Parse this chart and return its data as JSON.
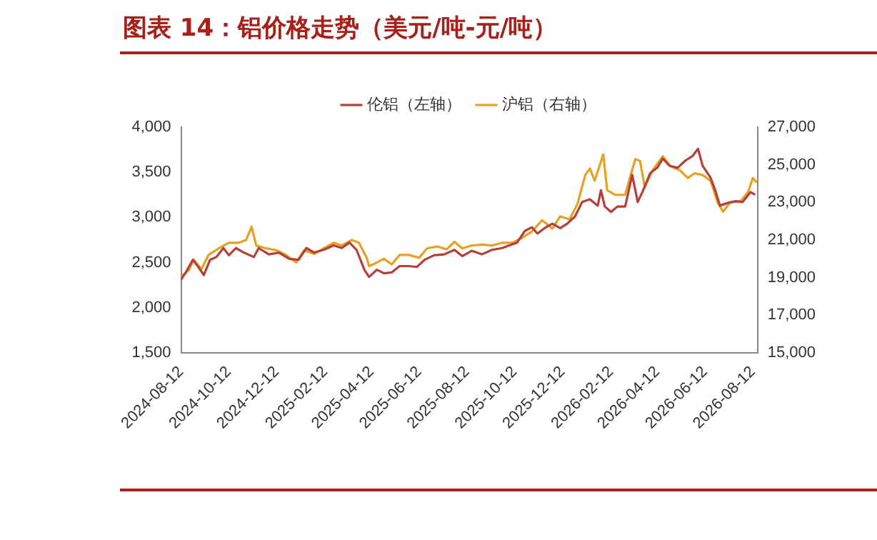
{
  "chart_data": {
    "type": "line",
    "title": "图表 14：铝价格走势（美元/吨-元/吨）",
    "legend": "top",
    "grid": false,
    "marker": "none",
    "line_style": "solid",
    "xlim": [
      "2024-08-12",
      "2026-08-18"
    ],
    "xticks": [
      "2024-08-12",
      "2024-10-12",
      "2024-12-12",
      "2025-02-12",
      "2025-04-12",
      "2025-06-12",
      "2025-08-12",
      "2025-10-12",
      "2025-12-12",
      "2026-02-12",
      "2026-04-12",
      "2026-06-12",
      "2026-08-12"
    ],
    "ylim": [
      1500,
      4000
    ],
    "yticks": [
      {
        "value": 1500,
        "label": "1,500"
      },
      {
        "value": 2000,
        "label": "2,000"
      },
      {
        "value": 2500,
        "label": "2,500"
      },
      {
        "value": 3000,
        "label": "3,000"
      },
      {
        "value": 3500,
        "label": "3,500"
      },
      {
        "value": 4000,
        "label": "4,000"
      }
    ],
    "y2lim": [
      15000,
      27000
    ],
    "y2ticks": [
      {
        "value": 15000,
        "label": "15,000"
      },
      {
        "value": 17000,
        "label": "17,000"
      },
      {
        "value": 19000,
        "label": "19,000"
      },
      {
        "value": 21000,
        "label": "21,000"
      },
      {
        "value": 23000,
        "label": "23,000"
      },
      {
        "value": 25000,
        "label": "25,000"
      },
      {
        "value": 27000,
        "label": "27,000"
      }
    ],
    "series": [
      {
        "name": "伦铝（左轴）",
        "color": "#b5403a",
        "x": [
          "2024-08-12",
          "2024-08-18",
          "2024-08-27",
          "2024-09-03",
          "2024-09-10",
          "2024-09-18",
          "2024-09-26",
          "2024-10-05",
          "2024-10-12",
          "2024-10-21",
          "2024-10-31",
          "2024-11-13",
          "2024-11-19",
          "2024-12-02",
          "2024-12-15",
          "2024-12-28",
          "2025-01-09",
          "2025-01-19",
          "2025-01-29",
          "2025-02-10",
          "2025-02-23",
          "2025-03-05",
          "2025-03-15",
          "2025-03-24",
          "2025-04-03",
          "2025-04-09",
          "2025-04-19",
          "2025-04-28",
          "2025-05-08",
          "2025-05-18",
          "2025-05-30",
          "2025-06-09",
          "2025-06-19",
          "2025-07-01",
          "2025-07-14",
          "2025-07-27",
          "2025-08-06",
          "2025-08-18",
          "2025-08-31",
          "2025-09-13",
          "2025-09-26",
          "2025-10-05",
          "2025-10-15",
          "2025-10-25",
          "2025-11-03",
          "2025-11-10",
          "2025-11-19",
          "2025-11-29",
          "2025-12-09",
          "2025-12-18",
          "2025-12-28",
          "2026-01-06",
          "2026-01-16",
          "2026-01-26",
          "2026-01-30",
          "2026-02-04",
          "2026-02-12",
          "2026-02-20",
          "2026-03-02",
          "2026-03-11",
          "2026-03-18",
          "2026-03-24",
          "2026-04-03",
          "2026-04-12",
          "2026-04-19",
          "2026-04-28",
          "2026-05-08",
          "2026-05-18",
          "2026-05-27",
          "2026-06-03",
          "2026-06-09",
          "2026-06-19",
          "2026-06-25",
          "2026-07-01",
          "2026-07-11",
          "2026-07-21",
          "2026-07-30",
          "2026-08-09",
          "2026-08-15"
        ],
        "values": [
          2310,
          2390,
          2530,
          2450,
          2360,
          2530,
          2560,
          2660,
          2580,
          2660,
          2610,
          2560,
          2660,
          2590,
          2610,
          2540,
          2530,
          2660,
          2610,
          2640,
          2690,
          2660,
          2720,
          2640,
          2420,
          2340,
          2420,
          2380,
          2390,
          2460,
          2460,
          2450,
          2530,
          2580,
          2590,
          2640,
          2570,
          2630,
          2590,
          2640,
          2660,
          2690,
          2720,
          2850,
          2890,
          2820,
          2880,
          2930,
          2880,
          2930,
          3010,
          3170,
          3200,
          3130,
          3300,
          3120,
          3060,
          3120,
          3120,
          3470,
          3170,
          3280,
          3490,
          3550,
          3650,
          3570,
          3550,
          3630,
          3680,
          3760,
          3570,
          3440,
          3300,
          3130,
          3160,
          3180,
          3170,
          3280,
          3250
        ]
      },
      {
        "name": "沪铝（右轴）",
        "color": "#e8a020",
        "axis": "y2",
        "x": [
          "2024-08-12",
          "2024-08-22",
          "2024-08-28",
          "2024-09-07",
          "2024-09-16",
          "2024-09-29",
          "2024-10-12",
          "2024-10-25",
          "2024-11-03",
          "2024-11-10",
          "2024-11-16",
          "2024-11-29",
          "2024-12-12",
          "2024-12-24",
          "2025-01-06",
          "2025-01-16",
          "2025-01-29",
          "2025-02-10",
          "2025-02-23",
          "2025-03-05",
          "2025-03-18",
          "2025-03-27",
          "2025-04-06",
          "2025-04-09",
          "2025-04-19",
          "2025-04-28",
          "2025-05-08",
          "2025-05-18",
          "2025-05-30",
          "2025-06-12",
          "2025-06-22",
          "2025-07-05",
          "2025-07-17",
          "2025-07-27",
          "2025-08-06",
          "2025-08-18",
          "2025-08-31",
          "2025-09-13",
          "2025-09-26",
          "2025-10-09",
          "2025-10-21",
          "2025-11-03",
          "2025-11-16",
          "2025-11-29",
          "2025-12-09",
          "2025-12-21",
          "2025-12-31",
          "2026-01-10",
          "2026-01-16",
          "2026-01-22",
          "2026-02-02",
          "2026-02-07",
          "2026-02-17",
          "2026-03-02",
          "2026-03-08",
          "2026-03-15",
          "2026-03-21",
          "2026-03-27",
          "2026-04-06",
          "2026-04-19",
          "2026-04-28",
          "2026-05-11",
          "2026-05-21",
          "2026-05-30",
          "2026-06-09",
          "2026-06-19",
          "2026-06-28",
          "2026-07-05",
          "2026-07-14",
          "2026-07-27",
          "2026-08-06",
          "2026-08-12",
          "2026-08-17"
        ],
        "values": [
          19050,
          19400,
          19950,
          19450,
          20200,
          20550,
          20850,
          20850,
          21000,
          21700,
          20700,
          20550,
          20450,
          20200,
          19800,
          20450,
          20250,
          20550,
          20850,
          20700,
          21000,
          20850,
          20050,
          19600,
          19800,
          20000,
          19700,
          20200,
          20200,
          20050,
          20550,
          20650,
          20500,
          20900,
          20550,
          20700,
          20750,
          20700,
          20850,
          20850,
          21100,
          21450,
          22050,
          21600,
          22250,
          22100,
          22900,
          24450,
          24800,
          24150,
          25550,
          23650,
          23400,
          23400,
          24300,
          25300,
          25200,
          23800,
          24700,
          25450,
          24950,
          24700,
          24300,
          24550,
          24450,
          24150,
          23000,
          22500,
          23000,
          23050,
          23550,
          24300,
          24050
        ]
      }
    ]
  }
}
